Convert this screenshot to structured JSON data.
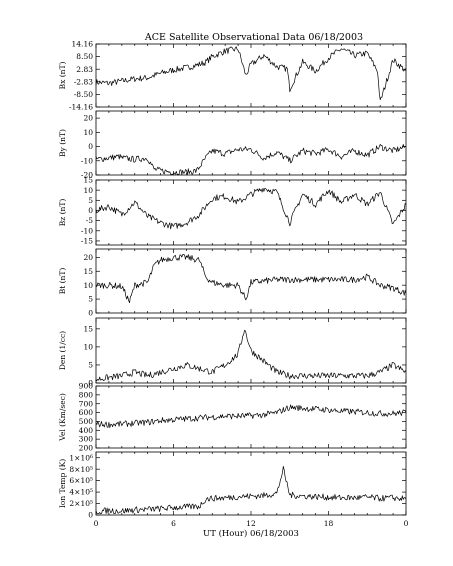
{
  "chart_data": {
    "type": "line",
    "title": "ACE Satellite Observational Data   06/18/2003",
    "xlabel": "UT (Hour)   06/18/2003",
    "x_ticks": [
      "0",
      "6",
      "12",
      "18",
      "0"
    ],
    "x_range_hours": [
      0,
      24
    ],
    "grid": false,
    "panels": [
      {
        "ylabel": "Bx (nT)",
        "ylim": [
          -14.16,
          14.16
        ],
        "yticks": [
          "14.16",
          "8.50",
          "2.83",
          "-2.83",
          "-8.50",
          "-14.16"
        ],
        "ytick_values": [
          14.16,
          8.5,
          2.83,
          -2.83,
          -8.5,
          -14.16
        ],
        "x": [
          0,
          1,
          2,
          3,
          4,
          5,
          6,
          7,
          8,
          8.5,
          9,
          10,
          11,
          11.6,
          12,
          13,
          14,
          14.8,
          15,
          16,
          17,
          18,
          19,
          20,
          21,
          21.8,
          22,
          23,
          24
        ],
        "y": [
          -3,
          -3.5,
          -2.5,
          -1.5,
          -1,
          1,
          2.5,
          3.5,
          5,
          6,
          8.5,
          11,
          12,
          0,
          5,
          9,
          4,
          3,
          -6,
          6,
          2,
          8,
          12,
          9,
          10,
          2,
          -12,
          7,
          2
        ]
      },
      {
        "ylabel": "By (nT)",
        "ylim": [
          -20,
          25
        ],
        "yticks": [
          "20",
          "10",
          "0",
          "-10",
          "-20"
        ],
        "ytick_values": [
          20,
          10,
          0,
          -10,
          -20
        ],
        "x": [
          0,
          1,
          1.8,
          2,
          3,
          4,
          4.5,
          5,
          6,
          7,
          7.8,
          8.5,
          9,
          10,
          11,
          12,
          13,
          14,
          15,
          16,
          17,
          18,
          19,
          20,
          21,
          22,
          23,
          24
        ],
        "y": [
          -9,
          -8,
          -7,
          -8,
          -9,
          -8,
          -16,
          -17,
          -18,
          -18,
          -17,
          -8,
          -3,
          -5,
          -2,
          -2,
          -8,
          -4,
          -10,
          -3,
          -5,
          -2,
          -7,
          -3,
          -6,
          0,
          -3,
          0
        ]
      },
      {
        "ylabel": "Bz (nT)",
        "ylim": [
          -17,
          15
        ],
        "yticks": [
          "15",
          "10",
          "5",
          "0",
          "-5",
          "-10",
          "-15"
        ],
        "ytick_values": [
          15,
          10,
          5,
          0,
          -5,
          -10,
          -15
        ],
        "x": [
          0,
          1,
          2,
          3,
          4,
          5,
          6,
          7,
          8,
          9,
          10,
          11,
          12,
          13,
          14,
          15,
          16,
          17,
          18,
          19,
          20,
          21,
          22,
          23,
          24
        ],
        "y": [
          0,
          2,
          -2,
          4,
          -3,
          -6,
          -8,
          -6,
          -2,
          6,
          7,
          4,
          8,
          11,
          9,
          -6,
          8,
          3,
          10,
          4,
          8,
          3,
          9,
          -7,
          3
        ]
      },
      {
        "ylabel": "Bt (nT)",
        "ylim": [
          0,
          23
        ],
        "yticks": [
          "20",
          "15",
          "10",
          "5",
          "0"
        ],
        "ytick_values": [
          20,
          15,
          10,
          5,
          0
        ],
        "x": [
          0,
          1,
          2,
          2.6,
          3,
          4,
          4.5,
          5,
          6,
          7,
          8,
          8.5,
          9,
          10,
          11,
          11.6,
          12,
          14,
          16,
          18,
          20,
          21,
          22,
          23,
          24
        ],
        "y": [
          10,
          10,
          9.5,
          4,
          10,
          11,
          17,
          19,
          20,
          20,
          19,
          13,
          11,
          10,
          10,
          5,
          11,
          12,
          12,
          12,
          12,
          13,
          10,
          9,
          7
        ]
      },
      {
        "ylabel": "Den (1/cc)",
        "ylim": [
          0,
          18
        ],
        "yticks": [
          "15",
          "10",
          "5",
          "0"
        ],
        "ytick_values": [
          15,
          10,
          5,
          0
        ],
        "x": [
          0,
          1,
          2,
          3,
          4,
          5,
          6,
          7,
          8,
          9,
          10,
          11,
          11.5,
          12,
          13,
          14,
          15,
          16,
          17,
          18,
          19,
          20,
          21,
          22,
          23,
          24
        ],
        "y": [
          1,
          1.5,
          2,
          3,
          2,
          3,
          4,
          5,
          4,
          3,
          5,
          8,
          15,
          9,
          6,
          3,
          2,
          2,
          2,
          2,
          2,
          2,
          2,
          3,
          5,
          3
        ]
      },
      {
        "ylabel": "Vel (Km/sec)",
        "ylim": [
          200,
          900
        ],
        "yticks": [
          "900",
          "800",
          "700",
          "600",
          "500",
          "400",
          "300",
          "200"
        ],
        "ytick_values": [
          900,
          800,
          700,
          600,
          500,
          400,
          300,
          200
        ],
        "x": [
          0,
          1,
          2,
          3,
          4,
          5,
          6,
          7,
          8,
          9,
          10,
          11,
          12,
          13,
          14,
          15,
          16,
          17,
          18,
          19,
          20,
          21,
          22,
          23,
          24
        ],
        "y": [
          470,
          465,
          470,
          480,
          490,
          510,
          520,
          530,
          540,
          550,
          560,
          560,
          565,
          575,
          600,
          660,
          650,
          640,
          630,
          615,
          610,
          600,
          590,
          590,
          600
        ]
      },
      {
        "ylabel": "Ion Temp (K)",
        "ylim": [
          0,
          1100000
        ],
        "yticks": [
          "1×10⁶",
          "8×10⁵",
          "6×10⁵",
          "4×10⁵",
          "2×10⁵",
          "0"
        ],
        "ytick_values": [
          1000000,
          800000,
          600000,
          400000,
          200000,
          0
        ],
        "x": [
          0,
          1,
          2,
          3,
          4,
          5,
          6,
          7,
          8,
          8.5,
          9,
          10,
          11,
          12,
          13,
          14,
          14.5,
          15,
          16,
          17,
          18,
          19,
          20,
          21,
          22,
          23,
          24
        ],
        "y": [
          60000,
          80000,
          70000,
          90000,
          100000,
          110000,
          130000,
          140000,
          150000,
          280000,
          290000,
          300000,
          320000,
          330000,
          340000,
          380000,
          800000,
          350000,
          330000,
          320000,
          310000,
          300000,
          300000,
          310000,
          290000,
          300000,
          280000
        ]
      }
    ]
  }
}
